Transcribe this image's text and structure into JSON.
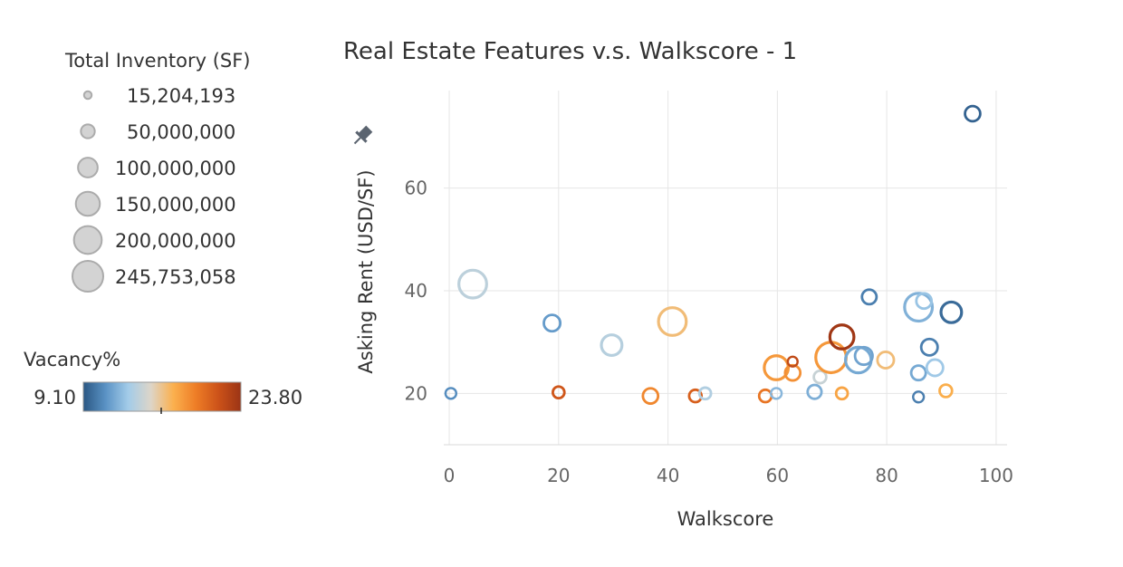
{
  "chart_data": {
    "type": "scatter",
    "title": "Real Estate Features v.s. Walkscore - 1",
    "xlabel": "Walkscore",
    "ylabel": "Asking Rent (USD/SF)",
    "xlim": [
      -1,
      102
    ],
    "ylim": [
      10,
      79
    ],
    "xticks": [
      0,
      20,
      40,
      60,
      80,
      100
    ],
    "yticks": [
      20,
      40,
      60
    ],
    "grid": true,
    "size_legend": {
      "title": "Total Inventory (SF)",
      "entries": [
        "15,204,193",
        "50,000,000",
        "100,000,000",
        "150,000,000",
        "200,000,000",
        "245,753,058"
      ],
      "values": [
        15204193,
        50000000,
        100000000,
        150000000,
        200000000,
        245753058
      ]
    },
    "color_legend": {
      "title": "Vacancy%",
      "min_label": "9.10",
      "max_label": "23.80",
      "min": 9.1,
      "max": 23.8,
      "colors": [
        "#2a5783",
        "#5b93c5",
        "#a3cce9",
        "#ddd5c8",
        "#fbb04e",
        "#ee7d26",
        "#cc5219",
        "#9b3415"
      ]
    },
    "points": [
      {
        "x": 95.7,
        "y": 74.5,
        "size": 60000000,
        "vacancy": 9.5
      },
      {
        "x": 4.3,
        "y": 41.3,
        "size": 200000000,
        "vacancy": 14.2
      },
      {
        "x": 18.8,
        "y": 33.7,
        "size": 70000000,
        "vacancy": 11.5
      },
      {
        "x": 29.7,
        "y": 29.4,
        "size": 110000000,
        "vacancy": 14.0
      },
      {
        "x": 40.8,
        "y": 34.0,
        "size": 200000000,
        "vacancy": 16.8
      },
      {
        "x": 0.3,
        "y": 20.0,
        "size": 30000000,
        "vacancy": 11.0
      },
      {
        "x": 20.0,
        "y": 20.2,
        "size": 35000000,
        "vacancy": 21.5
      },
      {
        "x": 36.8,
        "y": 19.5,
        "size": 60000000,
        "vacancy": 19.2
      },
      {
        "x": 45.0,
        "y": 19.5,
        "size": 40000000,
        "vacancy": 21.0
      },
      {
        "x": 46.8,
        "y": 20.0,
        "size": 35000000,
        "vacancy": 13.8
      },
      {
        "x": 57.8,
        "y": 19.5,
        "size": 40000000,
        "vacancy": 20.0
      },
      {
        "x": 59.8,
        "y": 20.0,
        "size": 30000000,
        "vacancy": 12.5
      },
      {
        "x": 59.8,
        "y": 25.0,
        "size": 150000000,
        "vacancy": 18.5
      },
      {
        "x": 62.8,
        "y": 24.0,
        "size": 60000000,
        "vacancy": 18.8
      },
      {
        "x": 62.8,
        "y": 26.2,
        "size": 25000000,
        "vacancy": 22.2
      },
      {
        "x": 66.8,
        "y": 20.3,
        "size": 50000000,
        "vacancy": 12.2
      },
      {
        "x": 67.8,
        "y": 23.2,
        "size": 40000000,
        "vacancy": 14.6
      },
      {
        "x": 69.8,
        "y": 27.0,
        "size": 240000000,
        "vacancy": 18.5
      },
      {
        "x": 71.8,
        "y": 31.0,
        "size": 150000000,
        "vacancy": 23.6
      },
      {
        "x": 71.8,
        "y": 20.0,
        "size": 35000000,
        "vacancy": 18.0
      },
      {
        "x": 74.8,
        "y": 26.5,
        "size": 170000000,
        "vacancy": 12.0
      },
      {
        "x": 75.8,
        "y": 27.3,
        "size": 80000000,
        "vacancy": 11.8
      },
      {
        "x": 76.8,
        "y": 38.8,
        "size": 55000000,
        "vacancy": 10.5
      },
      {
        "x": 79.8,
        "y": 26.5,
        "size": 70000000,
        "vacancy": 16.8
      },
      {
        "x": 85.8,
        "y": 36.8,
        "size": 200000000,
        "vacancy": 12.3
      },
      {
        "x": 86.8,
        "y": 38.0,
        "size": 60000000,
        "vacancy": 13.0
      },
      {
        "x": 85.8,
        "y": 24.0,
        "size": 55000000,
        "vacancy": 12.0
      },
      {
        "x": 85.8,
        "y": 19.3,
        "size": 30000000,
        "vacancy": 10.5
      },
      {
        "x": 87.8,
        "y": 29.0,
        "size": 70000000,
        "vacancy": 10.5
      },
      {
        "x": 88.8,
        "y": 25.0,
        "size": 70000000,
        "vacancy": 13.2
      },
      {
        "x": 90.8,
        "y": 20.5,
        "size": 40000000,
        "vacancy": 17.6
      },
      {
        "x": 91.8,
        "y": 35.8,
        "size": 110000000,
        "vacancy": 9.8
      }
    ]
  }
}
